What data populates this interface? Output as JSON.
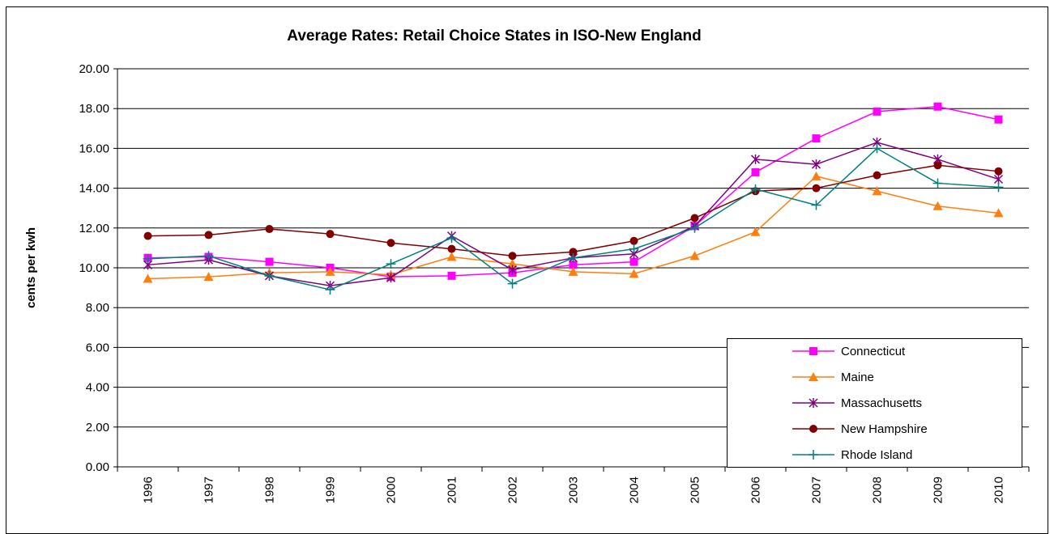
{
  "chart_data": {
    "type": "line",
    "title": "Average Rates: Retail Choice States in ISO-New England",
    "y_label": "cents per kwh",
    "categories": [
      "1996",
      "1997",
      "1998",
      "1999",
      "2000",
      "2001",
      "2002",
      "2003",
      "2004",
      "2005",
      "2006",
      "2007",
      "2008",
      "2009",
      "2010"
    ],
    "series": [
      {
        "name": "Connecticut",
        "color": "#ff00ff",
        "marker": "square",
        "values": [
          10.5,
          10.55,
          10.3,
          10.0,
          9.55,
          9.6,
          9.75,
          10.15,
          10.3,
          12.1,
          14.8,
          16.5,
          17.85,
          18.1,
          17.45
        ]
      },
      {
        "name": "Maine",
        "color": "#ff7f0e",
        "marker": "triangle",
        "values": [
          9.45,
          9.55,
          9.75,
          9.8,
          9.65,
          10.55,
          10.2,
          9.8,
          9.7,
          10.6,
          11.8,
          14.6,
          13.85,
          13.1,
          12.75
        ]
      },
      {
        "name": "Massachusetts",
        "color": "#7f007f",
        "marker": "star",
        "values": [
          10.15,
          10.4,
          9.6,
          9.1,
          9.5,
          11.6,
          9.9,
          10.5,
          10.7,
          12.1,
          15.45,
          15.2,
          16.3,
          15.45,
          14.45
        ]
      },
      {
        "name": "New Hampshire",
        "color": "#800000",
        "marker": "circle",
        "values": [
          11.6,
          11.65,
          11.95,
          11.7,
          11.25,
          10.95,
          10.6,
          10.8,
          11.35,
          12.5,
          13.85,
          14.0,
          14.65,
          15.15,
          14.85
        ]
      },
      {
        "name": "Rhode Island",
        "color": "#008080",
        "marker": "plus",
        "values": [
          10.45,
          10.6,
          9.6,
          8.9,
          10.2,
          11.5,
          9.2,
          10.5,
          10.95,
          12.0,
          13.95,
          13.15,
          16.0,
          14.25,
          14.05
        ]
      }
    ],
    "ylim": [
      0,
      20
    ],
    "yticks": [
      {
        "value": 0,
        "label": "0.00"
      },
      {
        "value": 2,
        "label": "2.00"
      },
      {
        "value": 4,
        "label": "4.00"
      },
      {
        "value": 6,
        "label": "6.00"
      },
      {
        "value": 8,
        "label": "8.00"
      },
      {
        "value": 10,
        "label": "10.00"
      },
      {
        "value": 12,
        "label": "12.00"
      },
      {
        "value": 14,
        "label": "14.00"
      },
      {
        "value": 16,
        "label": "16.00"
      },
      {
        "value": 18,
        "label": "18.00"
      },
      {
        "value": 20,
        "label": "20.00"
      }
    ],
    "grid": true,
    "legend": "lower right"
  }
}
